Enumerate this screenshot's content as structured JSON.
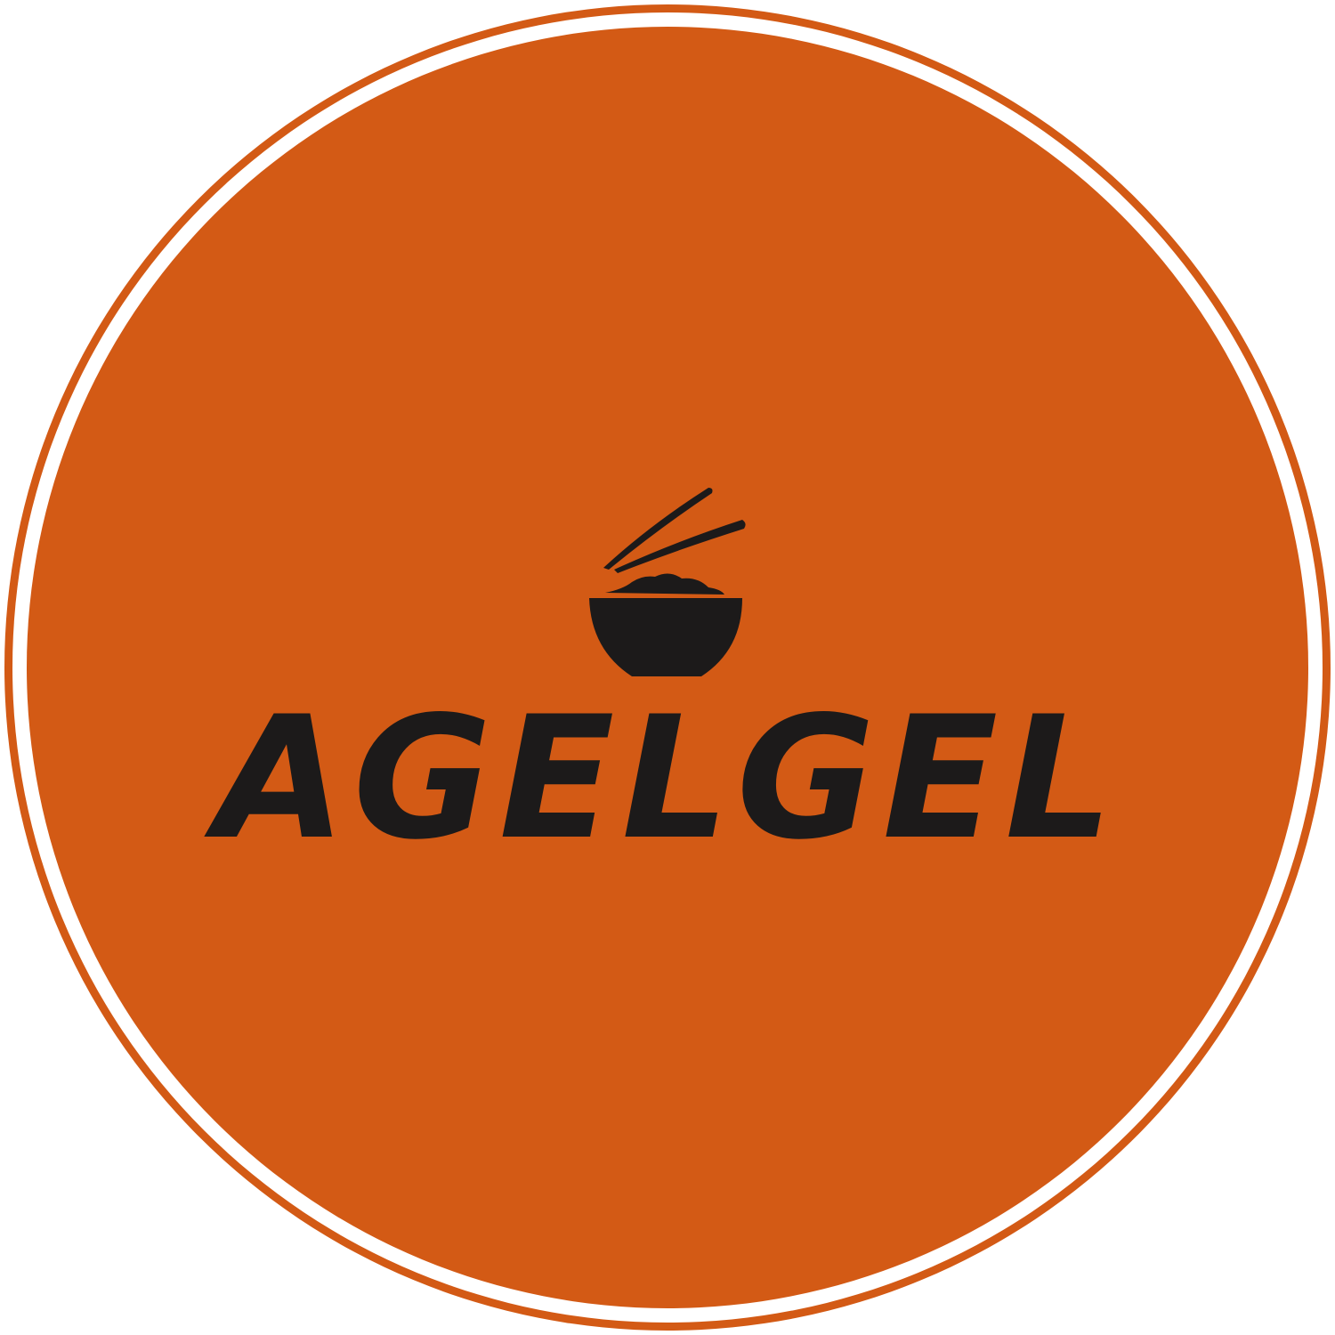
{
  "logo": {
    "name": "AGELGEL"
  }
}
